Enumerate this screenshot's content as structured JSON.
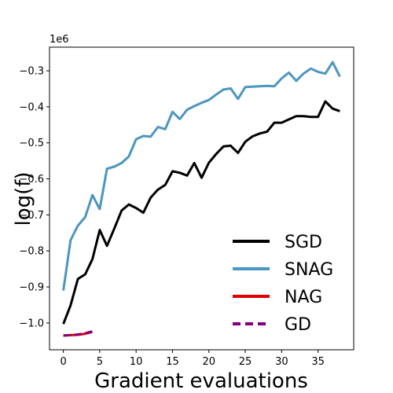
{
  "chart_data": {
    "type": "line",
    "xlabel": "Gradient evaluations",
    "ylabel": "log(f)",
    "offset_text": "1e6",
    "xlim": [
      -1.9,
      39.9
    ],
    "ylim": [
      -1.0745,
      -0.2344
    ],
    "xticks": [
      0,
      5,
      10,
      15,
      20,
      25,
      30,
      35
    ],
    "yticks": [
      -1.0,
      -0.9,
      -0.8,
      -0.7,
      -0.6,
      -0.5,
      -0.4,
      -0.3
    ],
    "ytick_labels": [
      "−1.0",
      "−0.9",
      "−0.8",
      "−0.7",
      "−0.6",
      "−0.5",
      "−0.4",
      "−0.3"
    ],
    "legend_position": "lower right",
    "series": [
      {
        "name": "SGD",
        "color": "#000000",
        "dash": "solid",
        "x": [
          0,
          1,
          2,
          3,
          4,
          5,
          6,
          7,
          8,
          9,
          10,
          11,
          12,
          13,
          14,
          15,
          16,
          17,
          18,
          19,
          20,
          21,
          22,
          23,
          24,
          25,
          26,
          27,
          28,
          29,
          30,
          31,
          32,
          33,
          34,
          35,
          36,
          37,
          38
        ],
        "y": [
          -1.003,
          -0.951,
          -0.878,
          -0.865,
          -0.823,
          -0.742,
          -0.786,
          -0.738,
          -0.688,
          -0.671,
          -0.681,
          -0.694,
          -0.652,
          -0.63,
          -0.617,
          -0.579,
          -0.583,
          -0.591,
          -0.556,
          -0.597,
          -0.555,
          -0.531,
          -0.51,
          -0.508,
          -0.528,
          -0.497,
          -0.482,
          -0.474,
          -0.469,
          -0.444,
          -0.444,
          -0.435,
          -0.426,
          -0.426,
          -0.428,
          -0.428,
          -0.385,
          -0.405,
          -0.412
        ]
      },
      {
        "name": "SNAG",
        "color": "#4c96c0",
        "dash": "solid",
        "x": [
          0,
          1,
          2,
          3,
          4,
          5,
          6,
          7,
          8,
          9,
          10,
          11,
          12,
          13,
          14,
          15,
          16,
          17,
          18,
          19,
          20,
          21,
          22,
          23,
          24,
          25,
          26,
          27,
          28,
          29,
          30,
          31,
          32,
          33,
          34,
          35,
          36,
          37,
          38
        ],
        "y": [
          -0.91,
          -0.77,
          -0.73,
          -0.706,
          -0.645,
          -0.684,
          -0.572,
          -0.566,
          -0.556,
          -0.538,
          -0.49,
          -0.481,
          -0.483,
          -0.456,
          -0.462,
          -0.414,
          -0.434,
          -0.408,
          -0.398,
          -0.389,
          -0.381,
          -0.366,
          -0.352,
          -0.349,
          -0.378,
          -0.345,
          -0.344,
          -0.343,
          -0.342,
          -0.343,
          -0.321,
          -0.305,
          -0.328,
          -0.308,
          -0.294,
          -0.303,
          -0.308,
          -0.276,
          -0.316
        ]
      },
      {
        "name": "NAG",
        "color": "#e00000",
        "dash": "solid",
        "x": [
          0,
          1,
          2,
          3,
          4
        ],
        "y": [
          -1.035,
          -1.034,
          -1.033,
          -1.03,
          -1.025
        ]
      },
      {
        "name": "GD",
        "color": "#800080",
        "dash": "dashed",
        "x": [
          0,
          1,
          2,
          3,
          4
        ],
        "y": [
          -1.035,
          -1.034,
          -1.032,
          -1.029,
          -1.023
        ]
      }
    ]
  }
}
